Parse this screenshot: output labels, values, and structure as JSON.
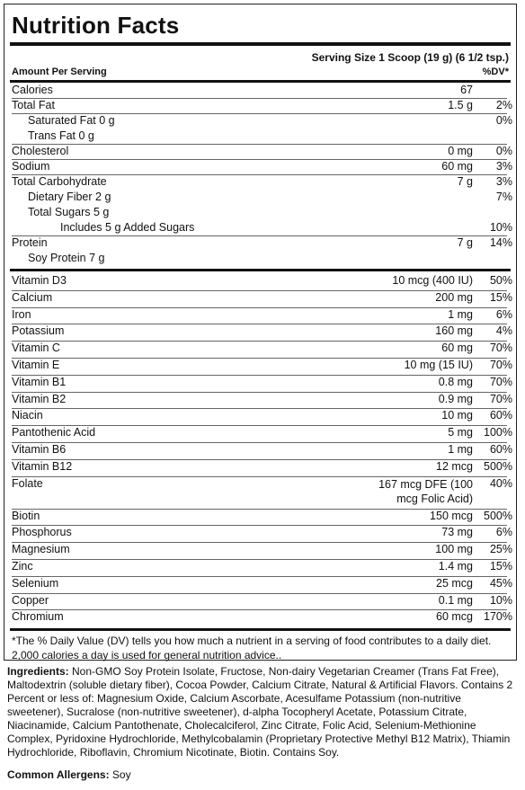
{
  "title": "Nutrition Facts",
  "serving_size": "Serving Size 1 Scoop (19 g) (6 1/2 tsp.)",
  "amount_per_serving": "Amount Per Serving",
  "dv_header": "%DV*",
  "main_rows": [
    {
      "name": "Calories",
      "amount": "67",
      "dv": "",
      "indent": 0
    },
    {
      "name": "Total Fat",
      "amount": "1.5 g",
      "dv": "2%",
      "indent": 0
    },
    {
      "name": "Saturated Fat   0 g",
      "amount": "",
      "dv": "0%",
      "indent": 1
    },
    {
      "name": "Trans Fat   0 g",
      "amount": "",
      "dv": "",
      "indent": 1
    },
    {
      "name": "Cholesterol",
      "amount": "0 mg",
      "dv": "0%",
      "indent": 0
    },
    {
      "name": "Sodium",
      "amount": "60 mg",
      "dv": "3%",
      "indent": 0
    },
    {
      "name": "Total Carbohydrate",
      "amount": "7 g",
      "dv": "3%",
      "indent": 0
    },
    {
      "name": "Dietary Fiber   2 g",
      "amount": "",
      "dv": "7%",
      "indent": 1
    },
    {
      "name": "Total Sugars   5 g",
      "amount": "",
      "dv": "",
      "indent": 1
    },
    {
      "name": "Includes 5 g Added Sugars",
      "amount": "",
      "dv": "10%",
      "indent": 2
    },
    {
      "name": "Protein",
      "amount": "7 g",
      "dv": "14%",
      "indent": 0
    },
    {
      "name": "Soy Protein   7 g",
      "amount": "",
      "dv": "",
      "indent": 1
    }
  ],
  "vitamin_rows": [
    {
      "name": "Vitamin D3",
      "amount": "10 mcg (400 IU)",
      "dv": "50%"
    },
    {
      "name": "Calcium",
      "amount": "200 mg",
      "dv": "15%"
    },
    {
      "name": "Iron",
      "amount": "1 mg",
      "dv": "6%"
    },
    {
      "name": "Potassium",
      "amount": "160 mg",
      "dv": "4%"
    },
    {
      "name": "Vitamin C",
      "amount": "60 mg",
      "dv": "70%"
    },
    {
      "name": "Vitamin E",
      "amount": "10 mg (15 IU)",
      "dv": "70%"
    },
    {
      "name": "Vitamin B1",
      "amount": "0.8 mg",
      "dv": "70%"
    },
    {
      "name": "Vitamin B2",
      "amount": "0.9 mg",
      "dv": "70%"
    },
    {
      "name": "Niacin",
      "amount": "10 mg",
      "dv": "60%"
    },
    {
      "name": "Pantothenic Acid",
      "amount": "5 mg",
      "dv": "100%"
    },
    {
      "name": "Vitamin B6",
      "amount": "1 mg",
      "dv": "60%"
    },
    {
      "name": "Vitamin B12",
      "amount": "12 mcg",
      "dv": "500%"
    },
    {
      "name": "Folate",
      "amount": "167 mcg DFE (100 mcg Folic Acid)",
      "dv": "40%",
      "wrap": true
    },
    {
      "name": "Biotin",
      "amount": "150 mcg",
      "dv": "500%"
    },
    {
      "name": "Phosphorus",
      "amount": "73 mg",
      "dv": "6%"
    },
    {
      "name": "Magnesium",
      "amount": "100 mg",
      "dv": "25%"
    },
    {
      "name": "Zinc",
      "amount": "1.4 mg",
      "dv": "15%"
    },
    {
      "name": "Selenium",
      "amount": "25 mcg",
      "dv": "45%"
    },
    {
      "name": "Copper",
      "amount": "0.1 mg",
      "dv": "10%"
    },
    {
      "name": "Chromium",
      "amount": "60 mcg",
      "dv": "170%"
    }
  ],
  "footnote": "*The % Daily Value (DV) tells you how much a nutrient in a serving of food contributes to a daily diet. 2,000 calories a day is used for general nutrition advice..",
  "ingredients_label": "Ingredients:",
  "ingredients_text": " Non-GMO Soy Protein Isolate, Fructose, Non-dairy Vegetarian Creamer (Trans Fat Free), Maltodextrin (soluble dietary fiber), Cocoa Powder, Calcium Citrate, Natural & Artificial Flavors. Contains 2 Percent or less of: Magnesium Oxide, Calcium Ascorbate, Acesulfame Potassium (non-nutritive sweetener), Sucralose (non-nutritive sweetener), d-alpha Tocopheryl Acetate, Potassium Citrate, Niacinamide, Calcium Pantothenate, Cholecalciferol, Zinc Citrate, Folic Acid, Selenium-Methionine Complex, Pyridoxine Hydrochloride, Methylcobalamin (Proprietary Protective Methyl B12 Matrix), Thiamin Hydrochloride, Riboflavin, Chromium Nicotinate, Biotin. Contains Soy.",
  "allergens_label": "Common Allergens:",
  "allergens_text": " Soy"
}
